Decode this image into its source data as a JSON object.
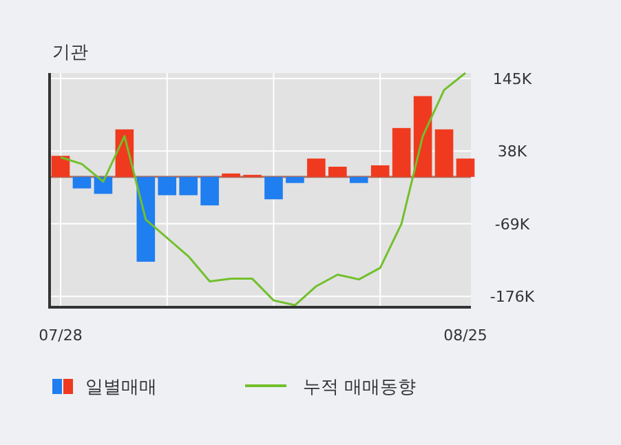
{
  "chart_data": {
    "type": "bar",
    "title": "기관",
    "categories": [
      "07/28",
      null,
      null,
      null,
      null,
      null,
      null,
      null,
      null,
      null,
      null,
      null,
      null,
      null,
      null,
      null,
      null,
      null,
      null,
      "08/25"
    ],
    "series": [
      {
        "name": "일별매매",
        "colors": [
          "#f03a1f",
          "#1f7ef0",
          "#1f7ef0",
          "#f03a1f",
          "#1f7ef0",
          "#1f7ef0",
          "#1f7ef0",
          "#1f7ef0",
          "#f03a1f",
          "#f03a1f",
          "#1f7ef0",
          "#1f7ef0",
          "#f03a1f",
          "#f03a1f",
          "#1f7ef0",
          "#f03a1f",
          "#f03a1f",
          "#f03a1f",
          "#f03a1f",
          "#f03a1f"
        ],
        "values": [
          31,
          -17,
          -25,
          70,
          -125,
          -27,
          -27,
          -42,
          5,
          3,
          -33,
          -9,
          27,
          15,
          -9,
          17,
          72,
          119,
          70,
          27
        ]
      },
      {
        "name": "누적 매매동향",
        "type": "line",
        "color": "#72c02c",
        "values": [
          29,
          19,
          -7,
          60,
          -63,
          -90,
          -117,
          -154,
          -150,
          -150,
          -182,
          -189,
          -161,
          -144,
          -151,
          -134,
          -69,
          60,
          128,
          153
        ]
      }
    ],
    "ylim": [
      -192,
      153
    ],
    "yticks": [
      {
        "value": 145,
        "label": "145K"
      },
      {
        "value": 38,
        "label": "38K"
      },
      {
        "value": -69,
        "label": "-69K"
      },
      {
        "value": -176,
        "label": "-176K"
      }
    ],
    "ref_lines": [
      {
        "axis": "y",
        "value": 0,
        "color": "#b07060"
      }
    ],
    "grid": true,
    "legend": "bottom",
    "marker": "none"
  }
}
